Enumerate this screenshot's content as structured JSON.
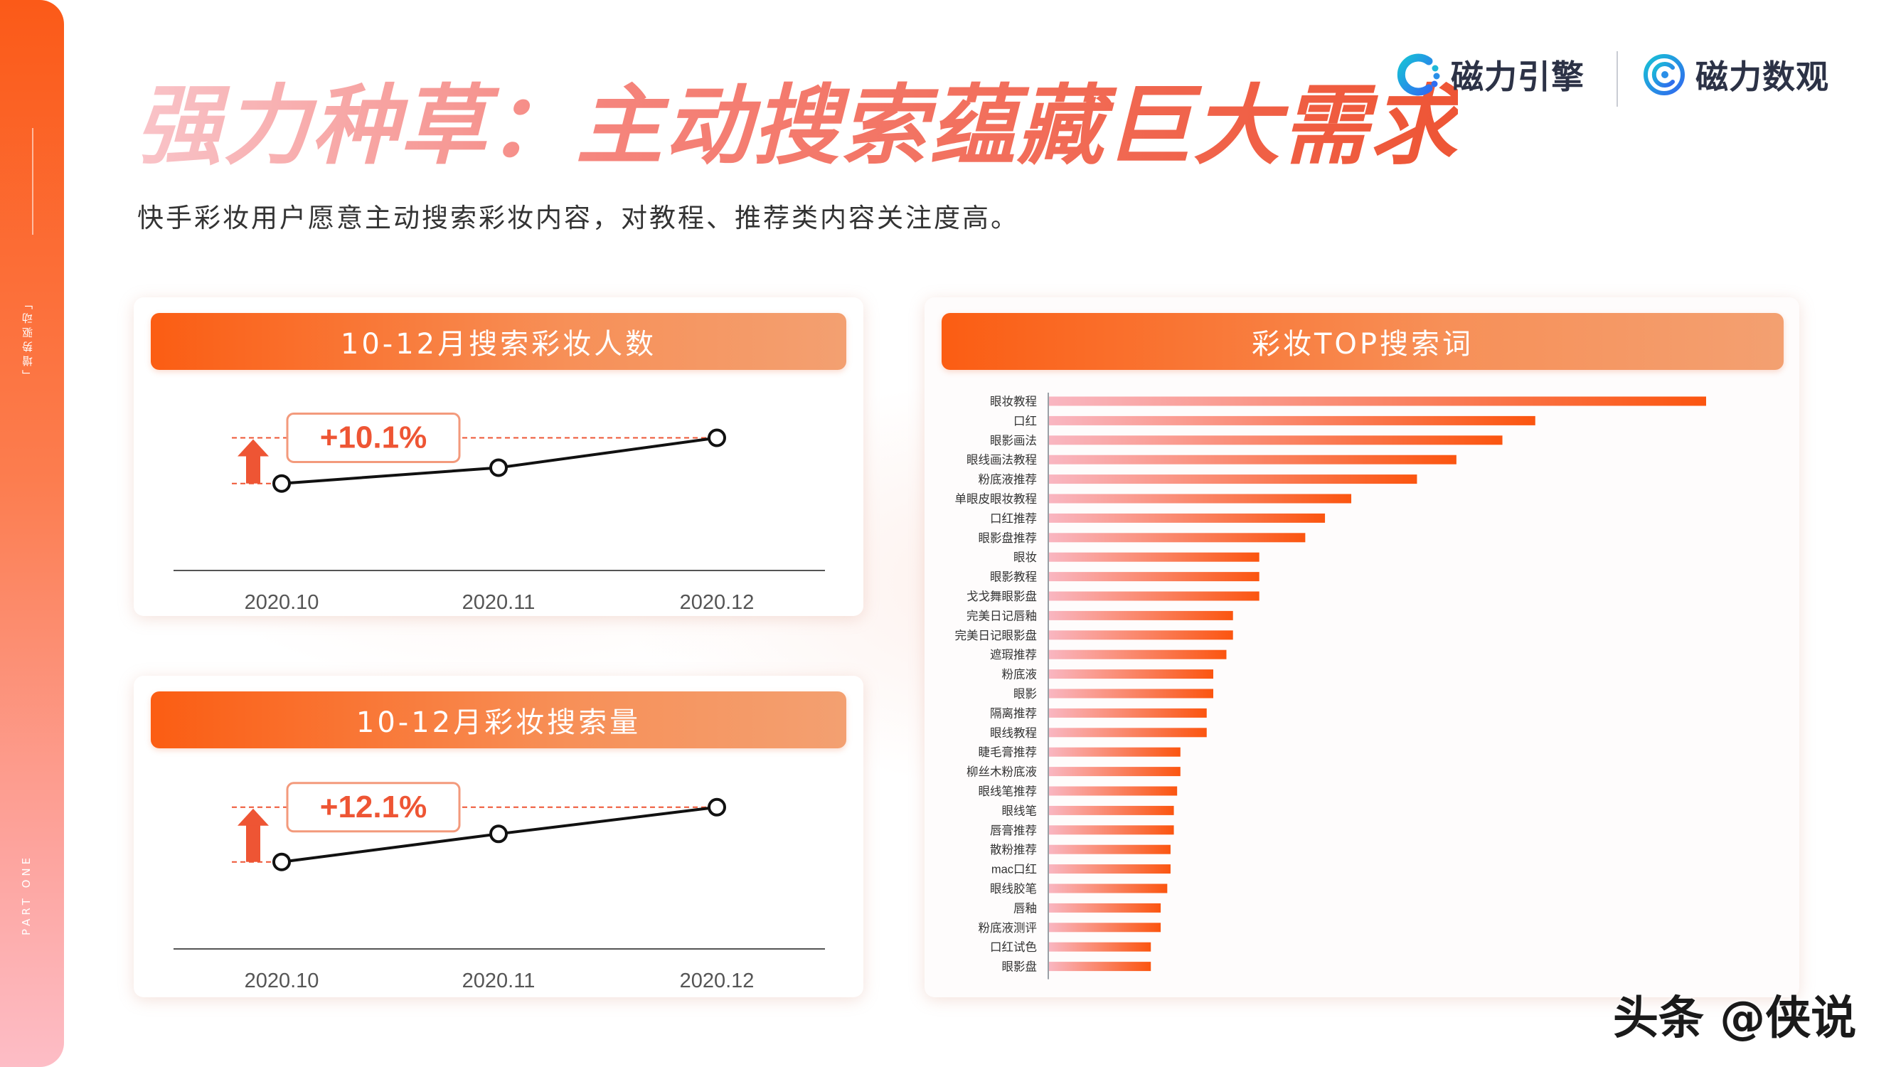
{
  "header": {
    "title": "强力种草：主动搜索蕴藏巨大需求",
    "subtitle": "快手彩妆用户愿意主动搜索彩妆内容，对教程、推荐类内容关注度高。"
  },
  "side": {
    "section_tag": "「增势驱动」",
    "part": "PART ONE"
  },
  "logos": {
    "brand_a": "磁力引擎",
    "brand_b": "磁力数观"
  },
  "colors": {
    "accent": "#fb5d13",
    "accent_light": "#f3a071",
    "bar_start": "#f9b6c1",
    "bar_end": "#fb5510",
    "arrow": "#ee5534",
    "text_dark": "#333333"
  },
  "watermark": "头条 @侠说",
  "chart_data": [
    {
      "type": "line",
      "title": "10-12月搜索彩妆人数",
      "x": [
        "2020.10",
        "2020.11",
        "2020.12"
      ],
      "values": [
        100,
        103.5,
        110.1
      ],
      "ylim": [
        88,
        116
      ],
      "growth_label": "+10.1%",
      "grid": false
    },
    {
      "type": "line",
      "title": "10-12月彩妆搜索量",
      "x": [
        "2020.10",
        "2020.11",
        "2020.12"
      ],
      "values": [
        100,
        106.2,
        112.1
      ],
      "ylim": [
        88,
        116
      ],
      "growth_label": "+12.1%",
      "grid": false
    },
    {
      "type": "bar",
      "orientation": "horizontal",
      "title": "彩妆TOP搜索词",
      "categories": [
        "眼妆教程",
        "口红",
        "眼影画法",
        "眼线画法教程",
        "粉底液推荐",
        "单眼皮眼妆教程",
        "口红推荐",
        "眼影盘推荐",
        "眼妆",
        "眼影教程",
        "戈戈舞眼影盘",
        "完美日记唇釉",
        "完美日记眼影盘",
        "遮瑕推荐",
        "粉底液",
        "眼影",
        "隔离推荐",
        "眼线教程",
        "睫毛膏推荐",
        "柳丝木粉底液",
        "眼线笔推荐",
        "眼线笔",
        "唇膏推荐",
        "散粉推荐",
        "mac口红",
        "眼线胶笔",
        "唇釉",
        "粉底液测评",
        "口红试色",
        "眼影盘"
      ],
      "values": [
        100,
        74,
        69,
        62,
        56,
        46,
        42,
        39,
        32,
        32,
        32,
        28,
        28,
        27,
        25,
        25,
        24,
        24,
        20,
        20,
        19.5,
        19,
        19,
        18.5,
        18.5,
        18,
        17,
        17,
        15.5,
        15.5
      ],
      "xlim": [
        0,
        100
      ],
      "grid": false
    }
  ]
}
